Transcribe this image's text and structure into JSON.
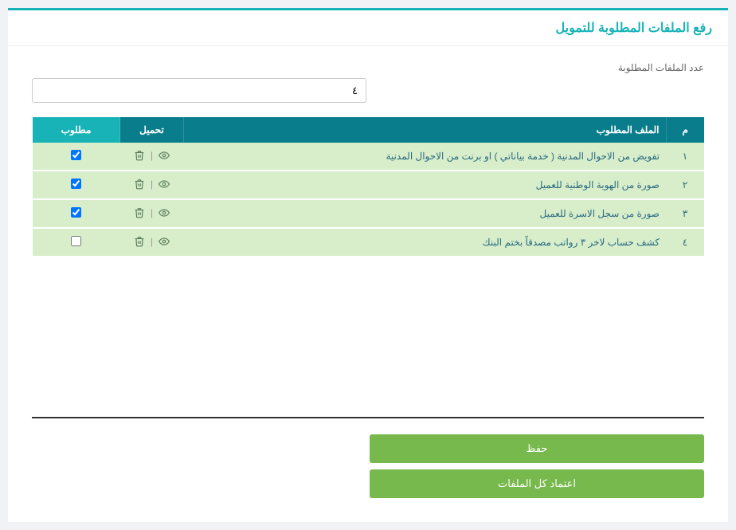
{
  "page_title": "رفع الملفات المطلوبة للتمويل",
  "count_label": "عدد الملفات المطلوبة",
  "count_value": "٤",
  "table": {
    "headers": {
      "idx": "م",
      "file": "الملف المطلوب",
      "download": "تحميل",
      "required": "مطلوب"
    },
    "rows": [
      {
        "idx": "١",
        "name": "تفويض من الاحوال المدنية ( خدمة بياناتي ) او برنت من الاحوال المدنية",
        "checked": true
      },
      {
        "idx": "٢",
        "name": "صورة من الهوية الوطنية للعميل",
        "checked": true
      },
      {
        "idx": "٣",
        "name": "صورة من سجل الاسرة للعميل",
        "checked": true
      },
      {
        "idx": "٤",
        "name": "كشف حساب لاخر ٣ رواتب مصدقاً بختم البنك",
        "checked": false
      }
    ]
  },
  "buttons": {
    "save": "حفظ",
    "approve_all": "اعتماد كل الملفات"
  },
  "colors": {
    "accent": "#17b3b7",
    "header_dark": "#0a7d8c",
    "row_bg": "#d8eecb",
    "btn_green": "#77b94c"
  }
}
